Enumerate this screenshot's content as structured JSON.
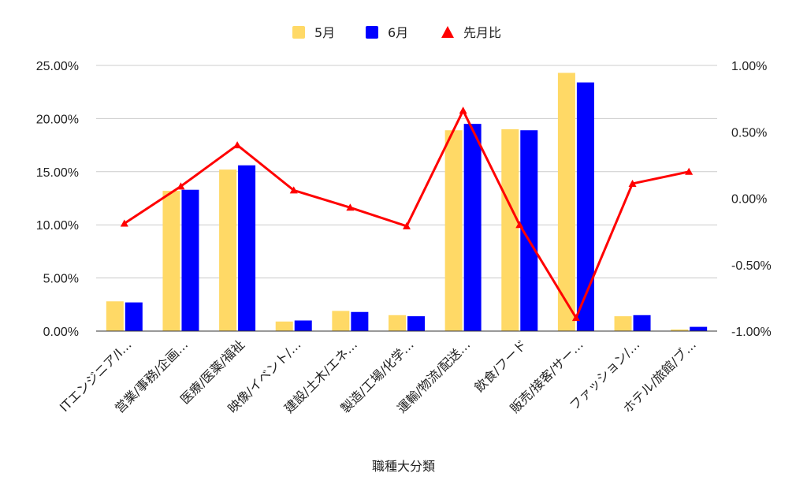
{
  "chart_data": {
    "type": "bar",
    "title": "",
    "xlabel": "職種大分類",
    "categories": [
      "ITエンジニア/I…",
      "営業/事務/企画…",
      "医療/医薬/福祉",
      "映像/イベント/…",
      "建設/土木/エネ…",
      "製造/工場/化学…",
      "運輸/物流/配送…",
      "飲食/フード",
      "販売/接客/サー…",
      "ファッション/…",
      "ホテル/旅館/ブ…"
    ],
    "series": [
      {
        "name": "5月",
        "type": "bar",
        "axis": "left",
        "color": "#FFD966",
        "values": [
          2.8,
          13.2,
          15.2,
          0.9,
          1.9,
          1.5,
          18.9,
          19.0,
          24.3,
          1.4,
          0.15
        ]
      },
      {
        "name": "6月",
        "type": "bar",
        "axis": "left",
        "color": "#0000FF",
        "values": [
          2.7,
          13.3,
          15.6,
          1.0,
          1.8,
          1.4,
          19.5,
          18.9,
          23.4,
          1.5,
          0.4
        ]
      },
      {
        "name": "先月比",
        "type": "line",
        "axis": "right",
        "color": "#FF0000",
        "marker": "triangle",
        "values": [
          -0.19,
          0.09,
          0.4,
          0.06,
          -0.07,
          -0.21,
          0.66,
          -0.2,
          -0.9,
          0.11,
          0.2
        ]
      }
    ],
    "y_left": {
      "range": [
        0,
        25
      ],
      "ticks": [
        0,
        5,
        10,
        15,
        20,
        25
      ],
      "tick_labels": [
        "0.00%",
        "5.00%",
        "10.00%",
        "15.00%",
        "20.00%",
        "25.00%"
      ]
    },
    "y_right": {
      "range": [
        -1.0,
        1.0
      ],
      "ticks": [
        -1.0,
        -0.5,
        0.0,
        0.5,
        1.0
      ],
      "tick_labels": [
        "-1.00%",
        "-0.50%",
        "0.00%",
        "0.50%",
        "1.00%"
      ]
    },
    "grid": true,
    "legend": {
      "position": "top-center",
      "entries": [
        "5月",
        "6月",
        "先月比"
      ]
    }
  }
}
